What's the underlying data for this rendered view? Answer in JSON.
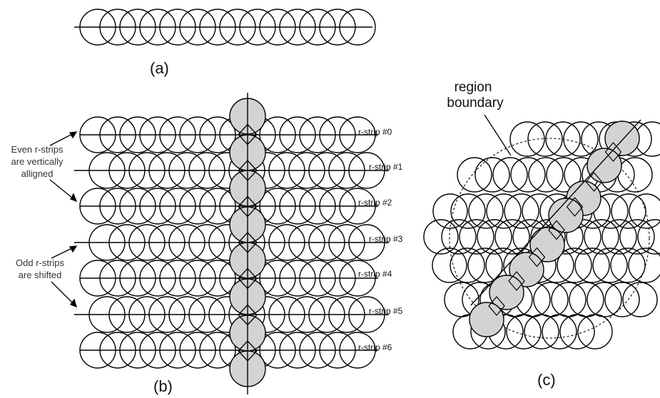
{
  "panels": {
    "a": {
      "caption": "(a)"
    },
    "b": {
      "caption": "(b)",
      "strip_labels": [
        "r-strip #0",
        "r-strip #1",
        "r-strip #2",
        "r-strip #3",
        "r-strip #4",
        "r-strip #5",
        "r-strip #6"
      ],
      "even_note": [
        "Even  r-strips",
        "are vertically",
        "alligned"
      ],
      "odd_note": [
        "Odd  r-strips",
        "are shifted"
      ]
    },
    "c": {
      "caption": "(c)",
      "region_label": [
        "region",
        "boundary"
      ]
    }
  },
  "colors": {
    "stroke": "#000000",
    "highlight": "#d3d3d3",
    "background": "#ffffff"
  }
}
